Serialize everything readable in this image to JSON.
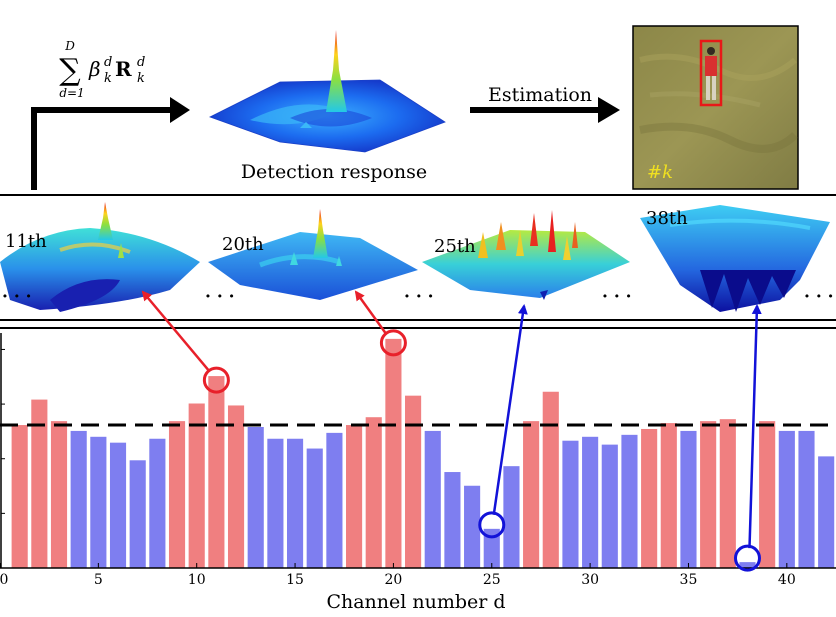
{
  "top": {
    "formula": {
      "sum_upper": "D",
      "sum_lower": "d=1",
      "beta": "β",
      "beta_sub": "k",
      "beta_sup": "d",
      "R": "R",
      "R_sub": "k",
      "R_sup": "d"
    },
    "detection_label": "Detection response",
    "estimation_label": "Estimation",
    "frame_label": "#k"
  },
  "middle": {
    "surfaces": [
      {
        "label": "11th"
      },
      {
        "label": "20th"
      },
      {
        "label": "25th"
      },
      {
        "label": "38th"
      }
    ],
    "ellipsis": "· · ·"
  },
  "chart_data": {
    "type": "bar",
    "x": [
      1,
      2,
      3,
      4,
      5,
      6,
      7,
      8,
      9,
      10,
      11,
      12,
      13,
      14,
      15,
      16,
      17,
      18,
      19,
      20,
      21,
      22,
      23,
      24,
      25,
      26,
      27,
      28,
      29,
      30,
      31,
      32,
      33,
      34,
      35,
      36,
      37,
      38,
      39,
      40,
      41,
      42
    ],
    "values": [
      0.73,
      0.86,
      0.75,
      0.7,
      0.67,
      0.64,
      0.55,
      0.66,
      0.75,
      0.84,
      0.98,
      0.83,
      0.72,
      0.66,
      0.66,
      0.61,
      0.69,
      0.73,
      0.77,
      1.17,
      0.88,
      0.7,
      0.49,
      0.42,
      0.2,
      0.52,
      0.75,
      0.9,
      0.65,
      0.67,
      0.63,
      0.68,
      0.71,
      0.74,
      0.7,
      0.75,
      0.76,
      0.03,
      0.75,
      0.7,
      0.7,
      0.57
    ],
    "colors": [
      "#f07f80",
      "#f07f80",
      "#f07f80",
      "#7e7ef0",
      "#7e7ef0",
      "#7e7ef0",
      "#7e7ef0",
      "#7e7ef0",
      "#f07f80",
      "#f07f80",
      "#f07f80",
      "#f07f80",
      "#7e7ef0",
      "#7e7ef0",
      "#7e7ef0",
      "#7e7ef0",
      "#7e7ef0",
      "#f07f80",
      "#f07f80",
      "#f07f80",
      "#f07f80",
      "#7e7ef0",
      "#7e7ef0",
      "#7e7ef0",
      "#7e7ef0",
      "#7e7ef0",
      "#f07f80",
      "#f07f80",
      "#7e7ef0",
      "#7e7ef0",
      "#7e7ef0",
      "#7e7ef0",
      "#f07f80",
      "#f07f80",
      "#7e7ef0",
      "#f07f80",
      "#f07f80",
      "#7e7ef0",
      "#f07f80",
      "#7e7ef0",
      "#7e7ef0",
      "#7e7ef0"
    ],
    "threshold": 0.73,
    "xlim": [
      0,
      42.5
    ],
    "ylim": [
      0,
      1.2
    ],
    "xticks": [
      0,
      5,
      10,
      15,
      20,
      25,
      30,
      35,
      40
    ],
    "xlabel": "Channel number d",
    "highlighted": [
      11,
      20,
      25,
      38
    ]
  }
}
